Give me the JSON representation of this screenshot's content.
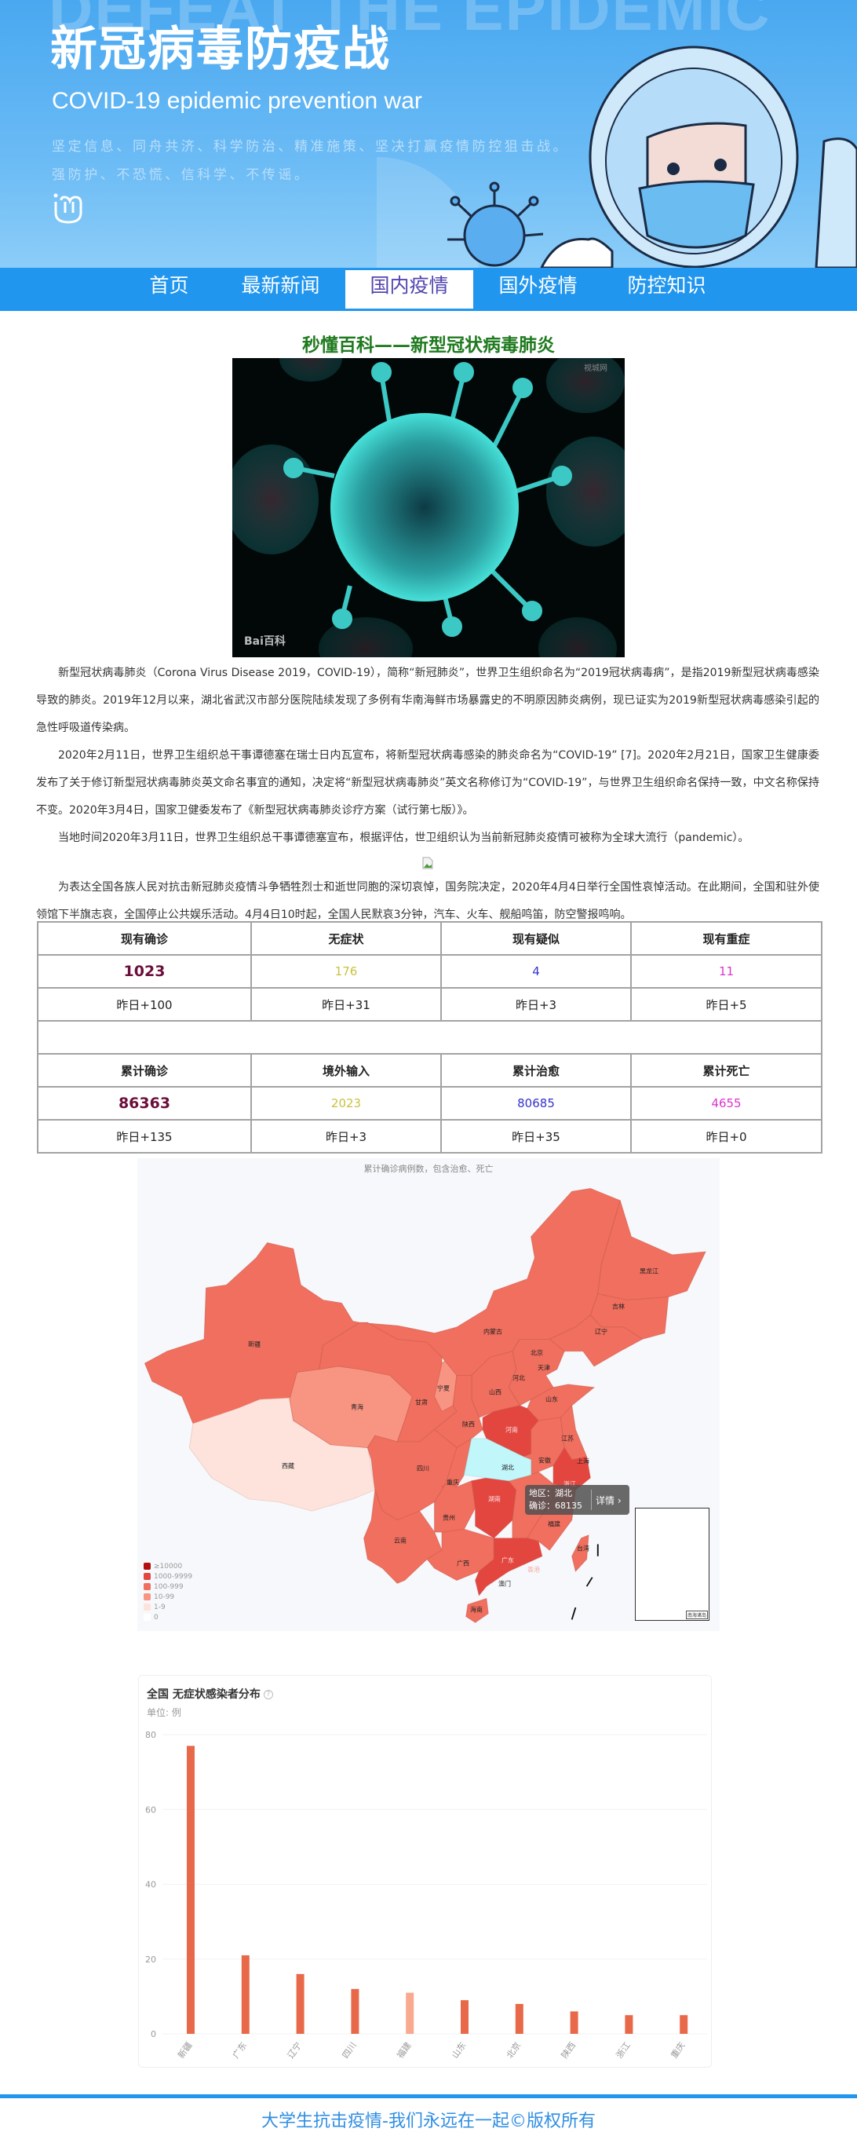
{
  "banner": {
    "watermark": "DEFEAT THE EPIDEMIC",
    "title": "新冠病毒防疫战",
    "subtitle": "COVID-19 epidemic prevention war",
    "slogan_1": "坚定信息、同舟共济、科学防治、精准施策、坚决打赢疫情防控狙击战。",
    "slogan_2": "强防护、不恐慌、信科学、不传谣。"
  },
  "nav": {
    "items": [
      {
        "label": "首页"
      },
      {
        "label": "最新新闻"
      },
      {
        "label": "国内疫情",
        "active": true
      },
      {
        "label": "国外疫情"
      },
      {
        "label": "防控知识"
      }
    ],
    "active_color": "#5246b0",
    "bar_color": "#2196ef"
  },
  "article": {
    "title": "秒懂百科——新型冠状病毒肺炎",
    "image_watermark": "视城网",
    "image_logo": "Bai百科",
    "paragraphs": [
      "新型冠状病毒肺炎（Corona Virus Disease 2019，COVID-19），简称“新冠肺炎”，世界卫生组织命名为“2019冠状病毒病”，是指2019新型冠状病毒感染导致的肺炎。2019年12月以来，湖北省武汉市部分医院陆续发现了多例有华南海鲜市场暴露史的不明原因肺炎病例，现已证实为2019新型冠状病毒感染引起的急性呼吸道传染病。",
      "2020年2月11日，世界卫生组织总干事谭德塞在瑞士日内瓦宣布，将新型冠状病毒感染的肺炎命名为“COVID-19” [7]。2020年2月21日，国家卫生健康委发布了关于修订新型冠状病毒肺炎英文命名事宜的通知，决定将“新型冠状病毒肺炎”英文名称修订为“COVID-19”，与世界卫生组织命名保持一致，中文名称保持不变。2020年3月4日，国家卫健委发布了《新型冠状病毒肺炎诊疗方案（试行第七版）》。",
      "当地时间2020年3月11日，世界卫生组织总干事谭德塞宣布，根据评估，世卫组织认为当前新冠肺炎疫情可被称为全球大流行（pandemic）。",
      "为表达全国各族人民对抗击新冠肺炎疫情斗争牺牲烈士和逝世同胞的深切哀悼，国务院决定，2020年4月4日举行全国性哀悼活动。在此期间，全国和驻外使领馆下半旗志哀，全国停止公共娱乐活动。4月4日10时起，全国人民默哀3分钟，汽车、火车、舰船鸣笛，防空警报鸣响。"
    ]
  },
  "stats": {
    "current": [
      {
        "label": "现有确诊",
        "value": "1023",
        "delta": "昨日+100",
        "color": "#6b0f3a"
      },
      {
        "label": "无症状",
        "value": "176",
        "delta": "昨日+31",
        "color": "#c9c23f"
      },
      {
        "label": "现有疑似",
        "value": "4",
        "delta": "昨日+3",
        "color": "#3333cc"
      },
      {
        "label": "现有重症",
        "value": "11",
        "delta": "昨日+5",
        "color": "#dd33cc"
      }
    ],
    "total": [
      {
        "label": "累计确诊",
        "value": "86363",
        "delta": "昨日+135",
        "color": "#6b0f3a"
      },
      {
        "label": "境外输入",
        "value": "2023",
        "delta": "昨日+3",
        "color": "#c9c23f"
      },
      {
        "label": "累计治愈",
        "value": "80685",
        "delta": "昨日+35",
        "color": "#3333cc"
      },
      {
        "label": "累计死亡",
        "value": "4655",
        "delta": "昨日+0",
        "color": "#dd33cc"
      }
    ]
  },
  "map": {
    "subtitle": "累计确诊病例数，包含治愈、死亡",
    "legend": [
      {
        "label": "≥10000",
        "color": "#b30f0f"
      },
      {
        "label": "1000-9999",
        "color": "#e3453f"
      },
      {
        "label": "100-999",
        "color": "#f06f5e"
      },
      {
        "label": "10-99",
        "color": "#f89482"
      },
      {
        "label": "1-9",
        "color": "#fde3dc"
      },
      {
        "label": "0",
        "color": "#ffffff"
      }
    ],
    "hover_color": "#c1f6fb",
    "provinces": {
      "xinjiang": "新疆",
      "xizang": "西藏",
      "qinghai": "青海",
      "gansu": "甘肃",
      "ningxia": "宁夏",
      "neimenggu": "内蒙古",
      "heilongjiang": "黑龙江",
      "jilin": "吉林",
      "liaoning": "辽宁",
      "beijing": "北京",
      "tianjin": "天津",
      "hebei": "河北",
      "shanxi": "山西",
      "shandong": "山东",
      "shaanxi": "陕西",
      "henan": "河南",
      "jiangsu": "江苏",
      "anhui": "安徽",
      "shanghai": "上海",
      "hubei": "湖北",
      "sichuan": "四川",
      "chongqing": "重庆",
      "zhejiang": "浙江",
      "hunan": "湖南",
      "guizhou": "贵州",
      "fujian": "福建",
      "yunnan": "云南",
      "taiwan": "台湾",
      "guangxi": "广西",
      "guangdong": "广东",
      "xianggang": "香港",
      "aomen": "澳门",
      "hainan": "海南"
    },
    "tooltip": {
      "region": "地区：湖北",
      "confirmed": "确诊：68135",
      "detail": "详情 ›"
    },
    "inset_label": "南海诸岛"
  },
  "chart_data": {
    "type": "bar",
    "title": "全国 无症状感染者分布",
    "unit": "单位: 例",
    "categories": [
      "新疆",
      "广东",
      "辽宁",
      "四川",
      "福建",
      "山东",
      "北京",
      "陕西",
      "浙江",
      "重庆"
    ],
    "values": [
      77,
      21,
      16,
      12,
      11,
      9,
      8,
      6,
      5,
      5
    ],
    "highlight_index": 4,
    "ylim": [
      0,
      80
    ],
    "yticks": [
      0,
      20,
      40,
      60,
      80
    ],
    "grid": true,
    "bar_color": "#e8694a",
    "highlight_color": "#f8a990"
  },
  "footer": {
    "text": "大学生抗击疫情-我们永远在一起©版权所有"
  }
}
